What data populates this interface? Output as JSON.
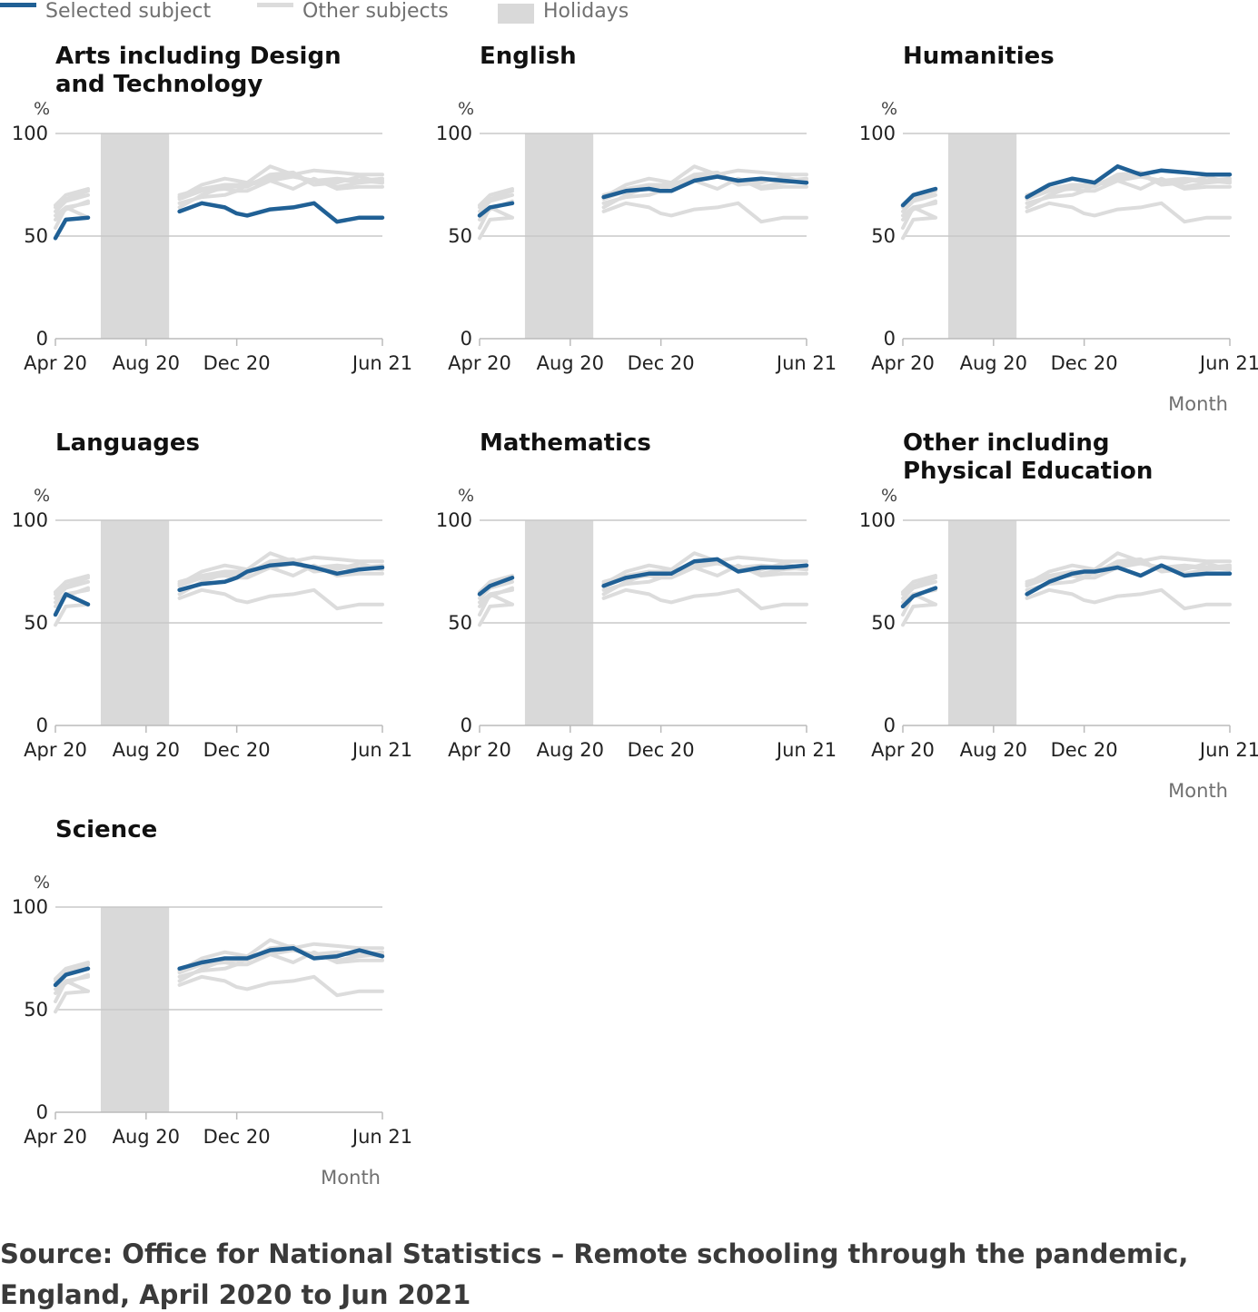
{
  "legend": {
    "selected_label": "Selected subject",
    "other_label": "Other subjects",
    "holiday_label": "Holidays"
  },
  "colors": {
    "selected": "#206095",
    "other": "#dcdcdc",
    "holiday": "#d9d9d9",
    "gridline": "#c8c8c8",
    "axis": "#bbbbbb"
  },
  "source": {
    "line1": "Source: Office for National Statistics – Remote schooling through the pandemic,",
    "line2": "England, April 2020 to Jun 2021"
  },
  "chart_data": {
    "type": "line",
    "small_multiples": true,
    "unit_label": "%",
    "xlabel": "Month",
    "ylim": [
      0,
      100
    ],
    "y_ticks": [
      "0",
      "50",
      "100"
    ],
    "x_range": [
      "2020-04-01",
      "2021-06-15"
    ],
    "x_ticks": [
      {
        "date": "2020-04-01",
        "label": "Apr 20"
      },
      {
        "date": "2020-08-01",
        "label": "Aug 20"
      },
      {
        "date": "2020-12-01",
        "label": "Dec 20"
      },
      {
        "date": "2021-06-15",
        "label": "Jun 21"
      }
    ],
    "holiday": {
      "start": "2020-06-01",
      "end": "2020-09-01"
    },
    "grid": true,
    "legend_position": "top-left",
    "dates": [
      "2020-04-01",
      "2020-04-15",
      "2020-05-15",
      "2020-09-15",
      "2020-10-15",
      "2020-11-15",
      "2020-12-01",
      "2020-12-15",
      "2021-01-15",
      "2021-02-15",
      "2021-03-15",
      "2021-04-15",
      "2021-05-15",
      "2021-06-15"
    ],
    "series": [
      {
        "name": "Arts including Design and Technology",
        "values": [
          49,
          58,
          59,
          62,
          66,
          64,
          61,
          60,
          63,
          64,
          66,
          57,
          59,
          59
        ]
      },
      {
        "name": "English",
        "values": [
          60,
          64,
          66,
          69,
          72,
          73,
          72,
          72,
          77,
          79,
          77,
          78,
          77,
          76
        ]
      },
      {
        "name": "Humanities",
        "values": [
          65,
          70,
          73,
          69,
          75,
          78,
          77,
          76,
          84,
          80,
          82,
          81,
          80,
          80
        ]
      },
      {
        "name": "Languages",
        "values": [
          54,
          64,
          59,
          66,
          69,
          70,
          72,
          75,
          78,
          79,
          77,
          74,
          76,
          77
        ]
      },
      {
        "name": "Mathematics",
        "values": [
          64,
          68,
          72,
          68,
          72,
          74,
          74,
          74,
          80,
          81,
          75,
          77,
          77,
          78
        ]
      },
      {
        "name": "Other including Physical Education",
        "values": [
          58,
          63,
          67,
          64,
          70,
          74,
          75,
          75,
          77,
          73,
          78,
          73,
          74,
          74
        ]
      },
      {
        "name": "Science",
        "values": [
          62,
          67,
          70,
          70,
          73,
          75,
          75,
          75,
          79,
          80,
          75,
          76,
          79,
          76
        ]
      }
    ]
  },
  "panels": [
    {
      "title_lines": [
        "Arts including Design",
        "and Technology"
      ],
      "show_xlabel": false
    },
    {
      "title_lines": [
        "English"
      ],
      "show_xlabel": false
    },
    {
      "title_lines": [
        "Humanities"
      ],
      "show_xlabel": true
    },
    {
      "title_lines": [
        "Languages"
      ],
      "show_xlabel": false
    },
    {
      "title_lines": [
        "Mathematics"
      ],
      "show_xlabel": false
    },
    {
      "title_lines": [
        "Other including",
        "Physical Education"
      ],
      "show_xlabel": true
    },
    {
      "title_lines": [
        "Science"
      ],
      "show_xlabel": true
    }
  ]
}
